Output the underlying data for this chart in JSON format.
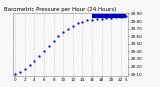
{
  "title": "Barometric Pressure per Hour (24 Hours)",
  "x_hours": [
    0,
    1,
    2,
    3,
    4,
    5,
    6,
    7,
    8,
    9,
    10,
    11,
    12,
    13,
    14,
    15,
    16,
    17,
    18,
    19,
    20,
    21,
    22,
    23
  ],
  "y_values": [
    29.1,
    29.13,
    29.17,
    29.22,
    29.28,
    29.34,
    29.41,
    29.47,
    29.54,
    29.6,
    29.65,
    29.7,
    29.74,
    29.77,
    29.79,
    29.81,
    29.82,
    29.83,
    29.83,
    29.84,
    29.84,
    29.85,
    29.85,
    29.86
  ],
  "current_value": 29.86,
  "ylim_min": 29.08,
  "ylim_max": 29.905,
  "dot_color": "#0000ff",
  "bar_color": "#0000cc",
  "grid_color": "#bbbbbb",
  "bg_color": "#f8f8f8",
  "title_color": "#000000",
  "title_fontsize": 4.0,
  "tick_fontsize": 3.0,
  "ytick_labels": [
    "29.10",
    "29.20",
    "29.30",
    "29.40",
    "29.50",
    "29.60",
    "29.70",
    "29.80",
    "29.90"
  ],
  "ytick_values": [
    29.1,
    29.2,
    29.3,
    29.4,
    29.5,
    29.6,
    29.7,
    29.8,
    29.9
  ],
  "xtick_positions": [
    0,
    2,
    4,
    6,
    8,
    10,
    12,
    14,
    16,
    18,
    20,
    22,
    23
  ],
  "xtick_labels": [
    "0",
    "2",
    "4",
    "6",
    "8",
    "10",
    "12",
    "14",
    "16",
    "18",
    "20",
    "22",
    "5"
  ],
  "grid_x_positions": [
    0,
    2,
    4,
    6,
    8,
    10,
    12,
    14,
    16,
    18,
    20,
    22
  ],
  "bar_x_start": 16,
  "bar_x_end": 23
}
